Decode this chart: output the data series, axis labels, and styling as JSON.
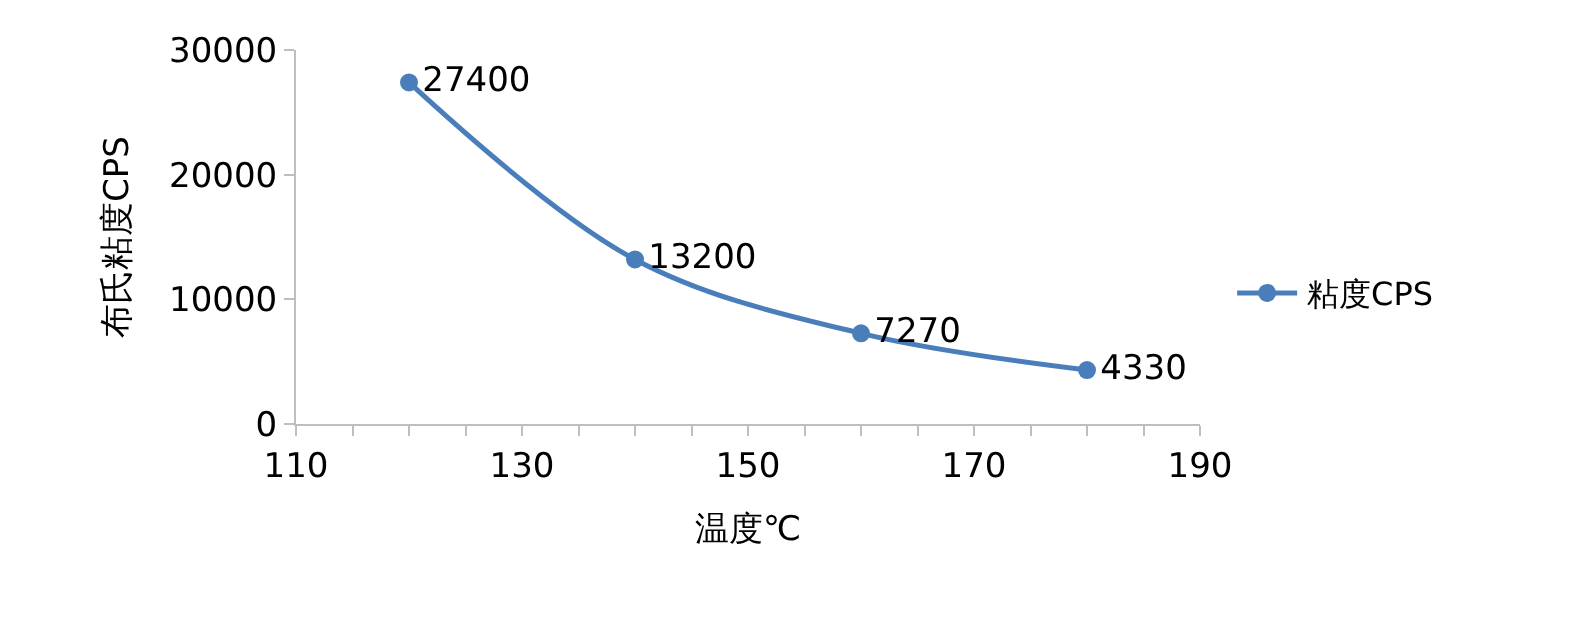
{
  "chart_data": {
    "type": "line",
    "xlabel": "温度℃",
    "ylabel": "布氏粘度CPS",
    "x": [
      120,
      140,
      160,
      180
    ],
    "series": [
      {
        "name": "粘度CPS",
        "color": "#4a7ebb",
        "values": [
          27400,
          13200,
          7270,
          4330
        ]
      }
    ],
    "xlim": [
      110,
      190
    ],
    "xticks": [
      110,
      {
        "value": 115,
        "label": null
      },
      {
        "value": 120,
        "label": null
      },
      {
        "value": 125,
        "label": null
      },
      130,
      {
        "value": 135,
        "label": null
      },
      {
        "value": 140,
        "label": null
      },
      {
        "value": 145,
        "label": null
      },
      150,
      {
        "value": 155,
        "label": null
      },
      {
        "value": 160,
        "label": null
      },
      {
        "value": 165,
        "label": null
      },
      170,
      {
        "value": 175,
        "label": null
      },
      {
        "value": 180,
        "label": null
      },
      {
        "value": 185,
        "label": null
      },
      190
    ],
    "ylim": [
      0,
      30000
    ],
    "yticks": [
      0,
      10000,
      20000,
      30000
    ],
    "legend": "right",
    "marker": "circle",
    "line_style": "solid",
    "data_labels": true
  }
}
